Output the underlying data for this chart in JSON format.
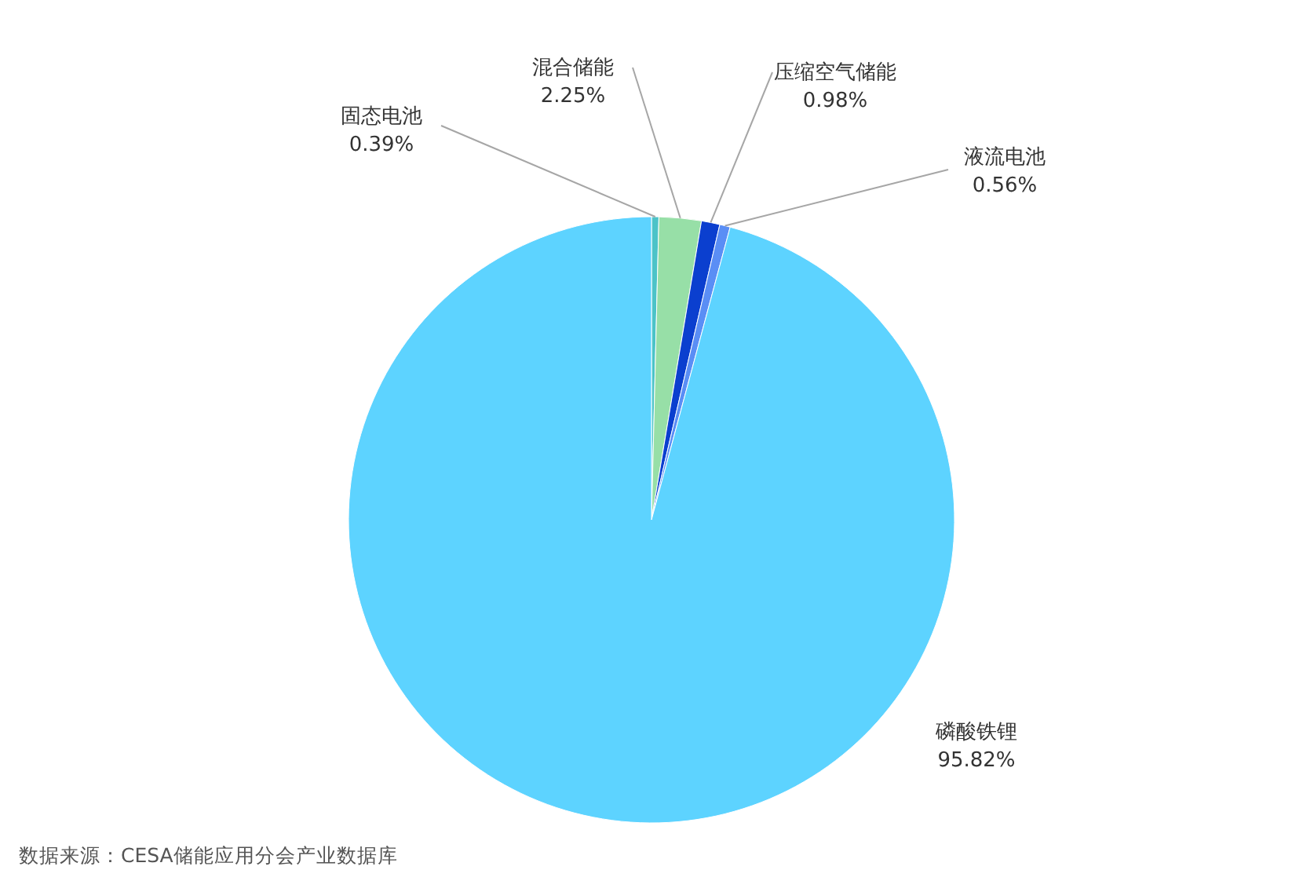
{
  "chart_data": {
    "type": "pie",
    "categories": [
      "固态电池",
      "混合储能",
      "压缩空气储能",
      "液流电池",
      "磷酸铁锂"
    ],
    "values": [
      0.39,
      2.25,
      0.98,
      0.56,
      95.82
    ],
    "value_labels": [
      "0.39%",
      "2.25%",
      "0.98%",
      "0.56%",
      "95.82%"
    ],
    "colors": [
      "#4cc3c8",
      "#97dfa7",
      "#0b3fcf",
      "#5a8ef5",
      "#5dd3ff"
    ],
    "annotations": [
      "数据来源：CESA储能应用分会产业数据库"
    ]
  }
}
